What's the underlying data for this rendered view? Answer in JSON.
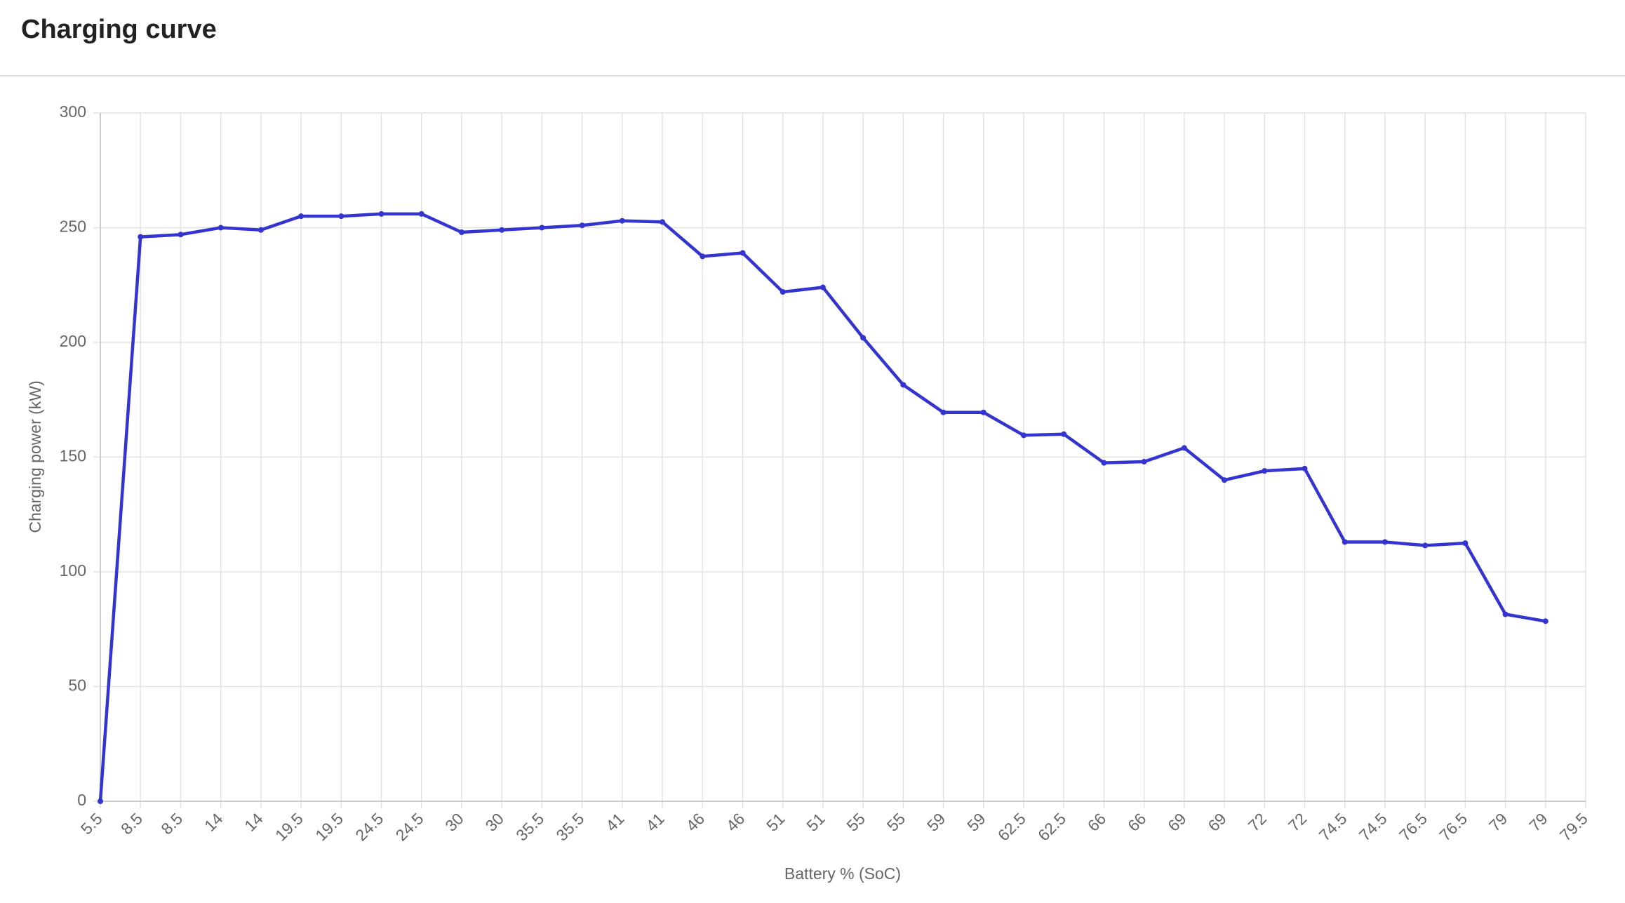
{
  "chart_data": {
    "type": "line",
    "title": "Charging curve",
    "x_label": "Battery % (SoC)",
    "y_label": "Charging power (kW)",
    "categories": [
      "5.5",
      "8.5",
      "8.5",
      "14",
      "14",
      "19.5",
      "19.5",
      "24.5",
      "24.5",
      "30",
      "30",
      "35.5",
      "35.5",
      "41",
      "41",
      "46",
      "46",
      "51",
      "51",
      "55",
      "55",
      "59",
      "59",
      "62.5",
      "62.5",
      "66",
      "66",
      "69",
      "69",
      "72",
      "72",
      "74.5",
      "74.5",
      "76.5",
      "76.5",
      "79",
      "79",
      "79.5"
    ],
    "series": [
      {
        "name": "Charging power",
        "color": "#3434d0",
        "values": [
          0,
          246,
          247,
          250,
          249,
          255,
          255,
          256,
          256,
          248,
          249,
          250,
          251,
          253,
          252.5,
          237.5,
          239,
          222,
          224,
          202,
          181.5,
          169.5,
          169.5,
          159.5,
          160,
          147.5,
          148,
          154,
          140,
          144,
          145,
          113,
          113,
          111.5,
          112.5,
          81.5,
          78.5,
          null
        ]
      }
    ],
    "ylim": [
      0,
      300
    ],
    "yticks": [
      0,
      50,
      100,
      150,
      200,
      250,
      300
    ],
    "grid": true
  }
}
